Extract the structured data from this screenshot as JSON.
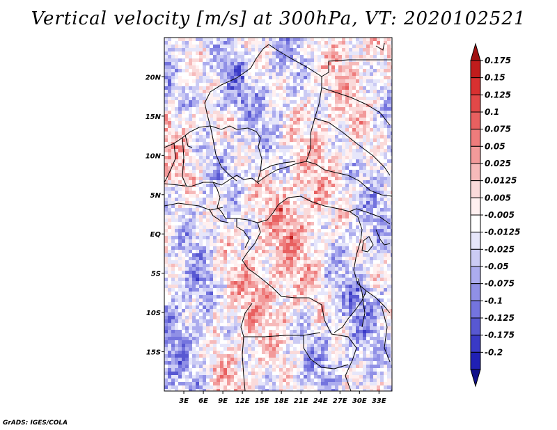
{
  "title": "Vertical velocity [m/s] at 300hPa, VT: 2020102521",
  "credit": "GrADS: IGES/COLA",
  "chart_data": {
    "type": "heatmap",
    "title": "Vertical velocity [m/s] at 300hPa, VT: 2020102521",
    "variable": "Vertical velocity",
    "units": "m/s",
    "level": "300hPa",
    "valid_time": "2020102521",
    "lon_range": [
      0,
      35
    ],
    "lat_range": [
      -20,
      25
    ],
    "lon_ticks": [
      {
        "value": 3,
        "label": "3E"
      },
      {
        "value": 6,
        "label": "6E"
      },
      {
        "value": 9,
        "label": "9E"
      },
      {
        "value": 12,
        "label": "12E"
      },
      {
        "value": 15,
        "label": "15E"
      },
      {
        "value": 18,
        "label": "18E"
      },
      {
        "value": 21,
        "label": "21E"
      },
      {
        "value": 24,
        "label": "24E"
      },
      {
        "value": 27,
        "label": "27E"
      },
      {
        "value": 30,
        "label": "30E"
      },
      {
        "value": 33,
        "label": "33E"
      }
    ],
    "lat_ticks": [
      {
        "value": 20,
        "label": "20N"
      },
      {
        "value": 15,
        "label": "15N"
      },
      {
        "value": 10,
        "label": "10N"
      },
      {
        "value": 5,
        "label": "5N"
      },
      {
        "value": 0,
        "label": "EQ"
      },
      {
        "value": -5,
        "label": "5S"
      },
      {
        "value": -10,
        "label": "10S"
      },
      {
        "value": -15,
        "label": "15S"
      }
    ],
    "colorbar": {
      "orientation": "vertical",
      "placement": "right",
      "labels": [
        "0.175",
        "0.15",
        "0.125",
        "0.1",
        "0.075",
        "0.05",
        "0.025",
        "0.0125",
        "0.005",
        "-0.005",
        "-0.0125",
        "-0.025",
        "-0.05",
        "-0.075",
        "-0.1",
        "-0.125",
        "-0.175",
        "-0.2"
      ],
      "colors": [
        "#a01010",
        "#c01c1c",
        "#d83030",
        "#e24848",
        "#e86060",
        "#ee7c7c",
        "#f29a9a",
        "#f6baba",
        "#fadada",
        "#fff0f0",
        "#ffffff",
        "#e6e6fa",
        "#cbcbf4",
        "#acacee",
        "#9090e6",
        "#7474de",
        "#5858d2",
        "#3a3ac6",
        "#2020b4",
        "#10108a"
      ]
    }
  }
}
